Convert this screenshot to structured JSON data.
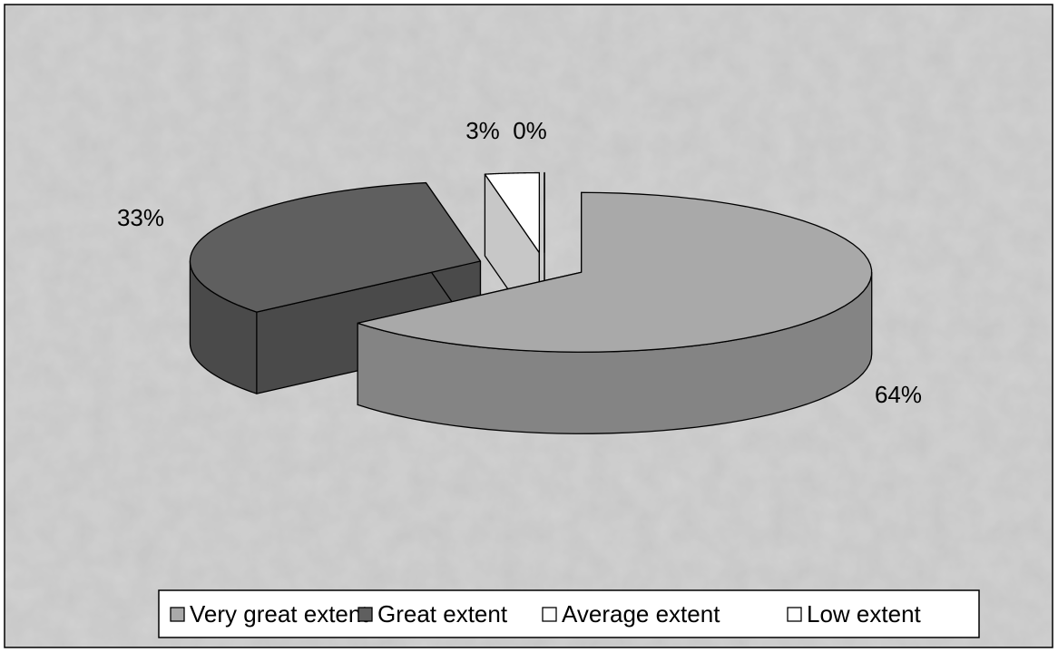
{
  "chart_data": {
    "type": "pie3d",
    "categories": [
      "Very great extent",
      "Great extent",
      "Average extent",
      "Low extent"
    ],
    "values": [
      64,
      33,
      3,
      0
    ],
    "value_labels": [
      "64%",
      "33%",
      "3%",
      "0%"
    ],
    "colors": [
      "#a9a9a9",
      "#5f5f5f",
      "#ffffff",
      "#ffffff"
    ],
    "legend": "bottom"
  }
}
